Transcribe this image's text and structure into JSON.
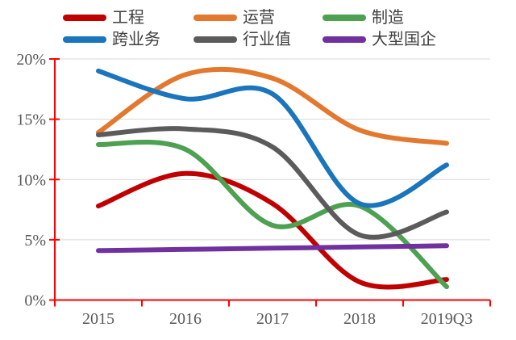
{
  "chart_data": {
    "type": "line",
    "title": "",
    "categories": [
      "2015",
      "2016",
      "2017",
      "2018",
      "2019Q3"
    ],
    "y_tick_labels": [
      "0%",
      "5%",
      "10%",
      "15%",
      "20%"
    ],
    "ylim": [
      0,
      20
    ],
    "y_step": 5,
    "grid": true,
    "smooth_lines": true,
    "legend_position": "top",
    "axis_color": "#ff0000",
    "gridline_color": "#d9d9d9",
    "tick_label_color": "#595959",
    "legend_text_color": "#3f3f3f",
    "series": [
      {
        "name": "工程",
        "color": "#c00000",
        "values": [
          7.8,
          10.5,
          8.0,
          1.5,
          1.7
        ]
      },
      {
        "name": "运营",
        "color": "#e2792e",
        "values": [
          13.9,
          18.7,
          18.4,
          14.1,
          13.0
        ]
      },
      {
        "name": "制造",
        "color": "#4ea052",
        "values": [
          12.9,
          12.5,
          6.2,
          7.8,
          1.1
        ]
      },
      {
        "name": "跨业务",
        "color": "#1b75bc",
        "values": [
          19.0,
          16.7,
          17.1,
          8.0,
          11.2
        ]
      },
      {
        "name": "行业值",
        "color": "#5b5b5b",
        "values": [
          13.7,
          14.2,
          12.7,
          5.4,
          7.3
        ]
      },
      {
        "name": "大型国企",
        "color": "#7030a0",
        "values": [
          4.1,
          4.2,
          4.3,
          4.4,
          4.5
        ]
      }
    ]
  }
}
